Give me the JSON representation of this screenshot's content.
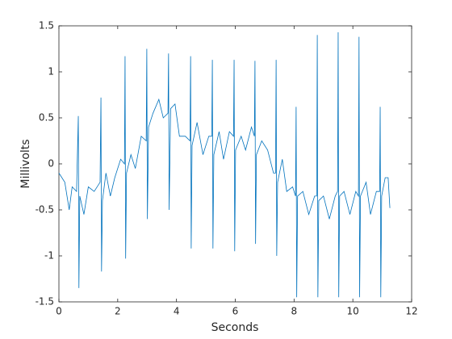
{
  "chart_data": {
    "type": "line",
    "xlabel": "Seconds",
    "ylabel": "Millivolts",
    "xlim": [
      0,
      12
    ],
    "ylim": [
      -1.5,
      1.5
    ],
    "xticks": [
      0,
      2,
      4,
      6,
      8,
      10,
      12
    ],
    "yticks": [
      -1.5,
      -1,
      -0.5,
      0,
      0.5,
      1,
      1.5
    ],
    "grid": false,
    "x": [
      0,
      0.2,
      0.35,
      0.45,
      0.6,
      0.66,
      0.68,
      0.71,
      0.85,
      1.0,
      1.2,
      1.4,
      1.43,
      1.45,
      1.48,
      1.6,
      1.75,
      1.9,
      2.1,
      2.23,
      2.25,
      2.27,
      2.3,
      2.45,
      2.6,
      2.8,
      2.97,
      2.99,
      3.01,
      3.05,
      3.2,
      3.4,
      3.55,
      3.71,
      3.73,
      3.75,
      3.8,
      3.95,
      4.1,
      4.3,
      4.46,
      4.48,
      4.5,
      4.53,
      4.7,
      4.9,
      5.1,
      5.2,
      5.22,
      5.24,
      5.27,
      5.45,
      5.6,
      5.8,
      5.94,
      5.96,
      5.98,
      6.01,
      6.2,
      6.35,
      6.55,
      6.65,
      6.67,
      6.69,
      6.72,
      6.9,
      7.1,
      7.3,
      7.37,
      7.39,
      7.41,
      7.44,
      7.6,
      7.75,
      7.95,
      8.05,
      8.07,
      8.09,
      8.12,
      8.3,
      8.5,
      8.7,
      8.77,
      8.79,
      8.81,
      8.84,
      9.0,
      9.2,
      9.4,
      9.48,
      9.5,
      9.52,
      9.55,
      9.7,
      9.9,
      10.1,
      10.19,
      10.21,
      10.23,
      10.26,
      10.45,
      10.6,
      10.8,
      10.91,
      10.93,
      10.95,
      10.98,
      11.1,
      11.2,
      11.26
    ],
    "series": [
      {
        "color": "#0072bd",
        "values": [
          -0.1,
          -0.2,
          -0.5,
          -0.25,
          -0.3,
          0.52,
          -1.35,
          -0.35,
          -0.55,
          -0.25,
          -0.3,
          -0.2,
          0.72,
          -1.17,
          -0.4,
          -0.1,
          -0.35,
          -0.15,
          0.05,
          0.0,
          1.17,
          -1.03,
          -0.1,
          0.1,
          -0.05,
          0.3,
          0.25,
          1.25,
          -0.6,
          0.4,
          0.55,
          0.7,
          0.5,
          0.55,
          1.2,
          -0.5,
          0.6,
          0.65,
          0.3,
          0.3,
          0.25,
          1.17,
          -0.92,
          0.2,
          0.45,
          0.1,
          0.3,
          0.3,
          1.13,
          -0.92,
          0.1,
          0.35,
          0.05,
          0.35,
          0.3,
          1.13,
          -0.95,
          0.15,
          0.3,
          0.15,
          0.4,
          0.3,
          1.12,
          -0.87,
          0.1,
          0.25,
          0.15,
          -0.1,
          -0.1,
          1.13,
          -1.0,
          -0.2,
          0.05,
          -0.3,
          -0.25,
          -0.35,
          0.62,
          -1.45,
          -0.35,
          -0.3,
          -0.55,
          -0.35,
          -0.35,
          1.4,
          -1.45,
          -0.4,
          -0.35,
          -0.6,
          -0.35,
          -0.3,
          1.43,
          -1.45,
          -0.35,
          -0.3,
          -0.55,
          -0.3,
          -0.35,
          1.38,
          -1.45,
          -0.35,
          -0.2,
          -0.55,
          -0.3,
          -0.3,
          0.62,
          -1.45,
          -0.35,
          -0.15,
          -0.15,
          -0.48
        ]
      }
    ]
  }
}
